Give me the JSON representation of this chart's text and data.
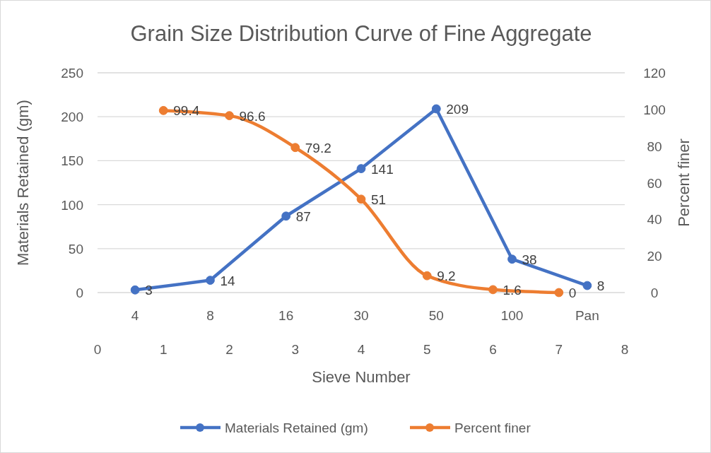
{
  "chart_data": {
    "type": "line",
    "title": "Grain Size Distribution Curve of Fine Aggregate",
    "xlabel": "Sieve Number",
    "ylabel": "Materials Retained (gm)",
    "y2label": "Percent finer",
    "xlim": [
      0,
      8
    ],
    "xticks": [
      0,
      1,
      2,
      3,
      4,
      5,
      6,
      7,
      8
    ],
    "ylim": [
      0,
      250
    ],
    "yticks": [
      0,
      50,
      100,
      150,
      200,
      250
    ],
    "y2lim": [
      0,
      120
    ],
    "y2ticks": [
      0,
      20,
      40,
      60,
      80,
      100,
      120
    ],
    "series": [
      {
        "name": "Materials Retained (gm)",
        "color": "#4472c4",
        "x": [
          0.57,
          1.71,
          2.86,
          4,
          5.14,
          6.29,
          7.43
        ],
        "values": [
          3,
          14,
          87,
          141,
          209,
          38,
          8
        ]
      },
      {
        "name": "Percent finer",
        "color": "#ed7d31",
        "axis": "y2",
        "x": [
          1,
          2,
          3,
          4,
          5,
          6,
          7
        ],
        "values": [
          99.4,
          96.6,
          79.2,
          51,
          9.2,
          1.6,
          0
        ]
      }
    ],
    "annotations": [
      "4",
      "8",
      "16",
      "30",
      "50",
      "100",
      "Pan"
    ],
    "grid": "y",
    "legend": "bottom",
    "marker": "circle",
    "data_labels": true
  }
}
